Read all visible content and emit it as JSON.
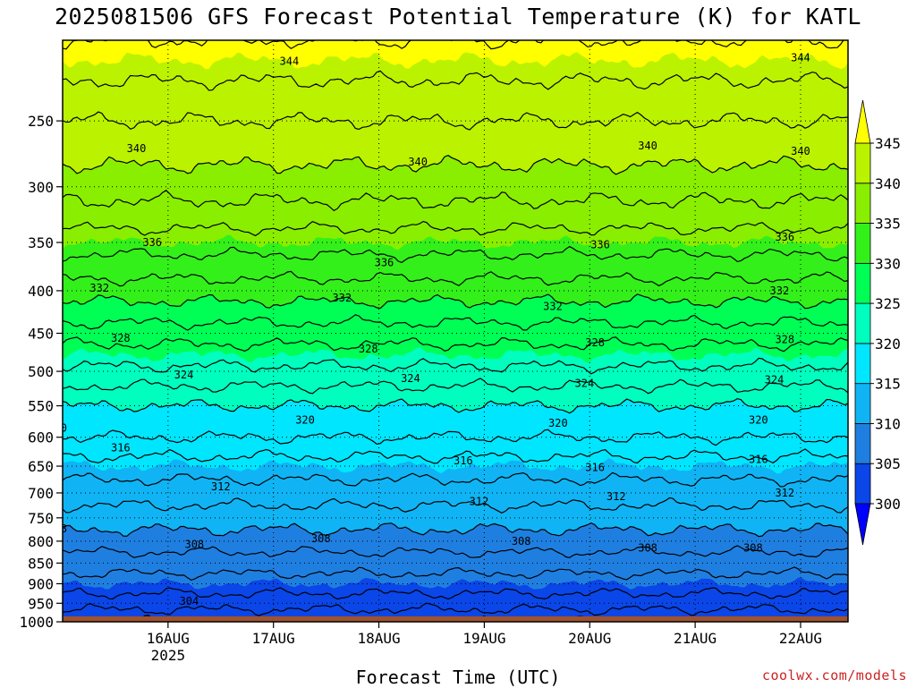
{
  "chart_data": {
    "type": "contour",
    "title": "2025081506 GFS Forecast Potential Temperature (K) for KATL",
    "xlabel": "Forecast Time (UTC)",
    "ylabel": "",
    "credit": "coolwx.com/models",
    "y_scale": "log-pressure (inverted)",
    "ylim": [
      1000,
      200
    ],
    "xlim": [
      0.0,
      7.45
    ],
    "y_ticks": [
      250,
      300,
      350,
      400,
      450,
      500,
      550,
      600,
      650,
      700,
      750,
      800,
      850,
      900,
      950,
      1000
    ],
    "x_ticks": [
      {
        "x": 1,
        "label": "16AUG",
        "sublabel": "2025"
      },
      {
        "x": 2,
        "label": "17AUG",
        "sublabel": ""
      },
      {
        "x": 3,
        "label": "18AUG",
        "sublabel": ""
      },
      {
        "x": 4,
        "label": "19AUG",
        "sublabel": ""
      },
      {
        "x": 5,
        "label": "20AUG",
        "sublabel": ""
      },
      {
        "x": 6,
        "label": "21AUG",
        "sublabel": ""
      },
      {
        "x": 7,
        "label": "22AUG",
        "sublabel": ""
      }
    ],
    "grid": true,
    "colorbar": {
      "levels": [
        300,
        305,
        310,
        315,
        320,
        325,
        330,
        335,
        340,
        345
      ],
      "colors": [
        "#0000ff",
        "#0a46e8",
        "#1f7fe0",
        "#10b4f4",
        "#00e6ff",
        "#00ffbf",
        "#00ff55",
        "#33f01a",
        "#8aee00",
        "#bbf200",
        "#ffff00"
      ],
      "extend": "both"
    },
    "surface_pressure": 985,
    "surface_color": "#a0522d",
    "profile": [
      {
        "p": 1000,
        "theta": 300
      },
      {
        "p": 950,
        "theta": 303
      },
      {
        "p": 900,
        "theta": 305
      },
      {
        "p": 850,
        "theta": 307
      },
      {
        "p": 800,
        "theta": 309
      },
      {
        "p": 750,
        "theta": 311
      },
      {
        "p": 700,
        "theta": 313
      },
      {
        "p": 650,
        "theta": 315
      },
      {
        "p": 600,
        "theta": 318
      },
      {
        "p": 550,
        "theta": 320
      },
      {
        "p": 500,
        "theta": 323.5
      },
      {
        "p": 450,
        "theta": 327
      },
      {
        "p": 400,
        "theta": 331
      },
      {
        "p": 350,
        "theta": 335
      },
      {
        "p": 300,
        "theta": 339
      },
      {
        "p": 250,
        "theta": 342
      },
      {
        "p": 200,
        "theta": 346
      }
    ],
    "contour_levels": [
      300,
      302,
      304,
      306,
      308,
      310,
      312,
      314,
      316,
      318,
      320,
      322,
      324,
      326,
      328,
      330,
      332,
      334,
      336,
      338,
      340,
      342,
      344,
      346
    ],
    "contour_labels": [
      {
        "level": 344,
        "x": 2.15,
        "p": 212
      },
      {
        "level": 344,
        "x": 7.0,
        "p": 210
      },
      {
        "level": 340,
        "x": 0.7,
        "p": 270
      },
      {
        "level": 340,
        "x": 3.37,
        "p": 280
      },
      {
        "level": 340,
        "x": 5.55,
        "p": 268
      },
      {
        "level": 340,
        "x": 7.0,
        "p": 272
      },
      {
        "level": 336,
        "x": 0.85,
        "p": 350
      },
      {
        "level": 336,
        "x": 3.05,
        "p": 370
      },
      {
        "level": 336,
        "x": 5.1,
        "p": 352
      },
      {
        "level": 336,
        "x": 6.85,
        "p": 345
      },
      {
        "level": 332,
        "x": 0.35,
        "p": 397
      },
      {
        "level": 332,
        "x": 2.65,
        "p": 408
      },
      {
        "level": 332,
        "x": 4.65,
        "p": 418
      },
      {
        "level": 332,
        "x": 6.8,
        "p": 400
      },
      {
        "level": 328,
        "x": 0.55,
        "p": 456
      },
      {
        "level": 328,
        "x": 2.9,
        "p": 470
      },
      {
        "level": 328,
        "x": 5.05,
        "p": 462
      },
      {
        "level": 328,
        "x": 6.85,
        "p": 458
      },
      {
        "level": 324,
        "x": 1.15,
        "p": 505
      },
      {
        "level": 324,
        "x": 3.3,
        "p": 510
      },
      {
        "level": 324,
        "x": 4.95,
        "p": 517
      },
      {
        "level": 324,
        "x": 6.75,
        "p": 512
      },
      {
        "level": 320,
        "x": -0.05,
        "p": 585
      },
      {
        "level": 320,
        "x": 2.3,
        "p": 572
      },
      {
        "level": 320,
        "x": 4.7,
        "p": 577
      },
      {
        "level": 320,
        "x": 6.6,
        "p": 572
      },
      {
        "level": 316,
        "x": 0.55,
        "p": 618
      },
      {
        "level": 316,
        "x": 3.8,
        "p": 640
      },
      {
        "level": 316,
        "x": 5.05,
        "p": 652
      },
      {
        "level": 316,
        "x": 6.6,
        "p": 638
      },
      {
        "level": 312,
        "x": -0.35,
        "p": 710
      },
      {
        "level": 312,
        "x": 1.5,
        "p": 688
      },
      {
        "level": 312,
        "x": 3.95,
        "p": 717
      },
      {
        "level": 312,
        "x": 5.25,
        "p": 707
      },
      {
        "level": 312,
        "x": 6.85,
        "p": 700
      },
      {
        "level": 308,
        "x": -0.05,
        "p": 773
      },
      {
        "level": 308,
        "x": 1.25,
        "p": 807
      },
      {
        "level": 308,
        "x": 2.45,
        "p": 794
      },
      {
        "level": 308,
        "x": 4.35,
        "p": 800
      },
      {
        "level": 308,
        "x": 5.55,
        "p": 815
      },
      {
        "level": 308,
        "x": 6.55,
        "p": 815
      },
      {
        "level": 304,
        "x": -0.15,
        "p": 885
      },
      {
        "level": 304,
        "x": 1.2,
        "p": 945
      }
    ]
  }
}
